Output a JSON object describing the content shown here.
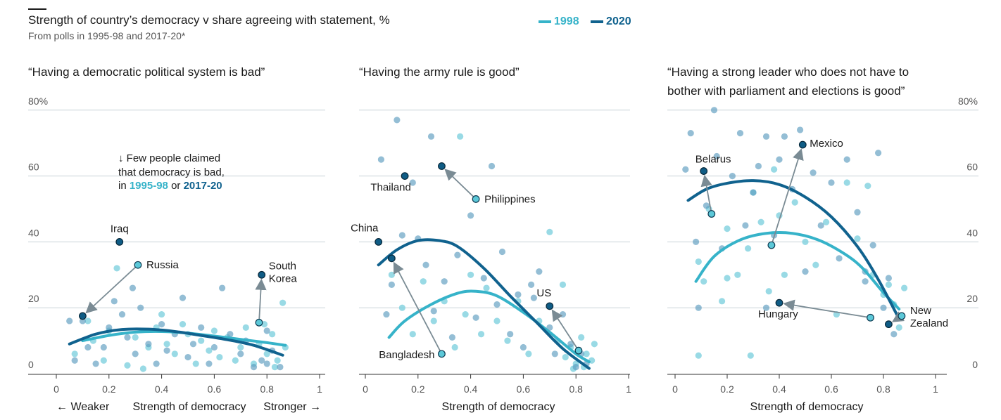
{
  "header": {
    "title": "Strength of country’s democracy v share agreeing with statement, %",
    "subtitle": "From polls in 1995-98 and 2017-20*"
  },
  "legend": {
    "items": [
      {
        "label": "1998",
        "color": "#36b3c9"
      },
      {
        "label": "2020",
        "color": "#10628e"
      }
    ]
  },
  "annotation": {
    "arrow": "↓",
    "line1": "Few people claimed",
    "line2": "that democracy is bad,",
    "prefix": "in ",
    "year1": "1995-98",
    "middle": " or ",
    "year2": "2017-20"
  },
  "axes": {
    "xlabel": "Strength of democracy",
    "weaker": "← Weaker",
    "stronger": "Stronger →",
    "xticks": [
      "0",
      "0.2",
      "0.4",
      "0.6",
      "0.8",
      "1"
    ],
    "yticks": [
      "0",
      "20",
      "40",
      "60",
      "80%"
    ],
    "ylim": [
      0,
      80
    ],
    "xlim": [
      -0.1,
      1.02
    ]
  },
  "colors": {
    "c1998": "#36b3c9",
    "c2020": "#10628e",
    "dot1998": "#7fd1de",
    "dot2020": "#5a9bbf",
    "grid": "#c9d3d8",
    "arrow": "#7a8b94"
  },
  "chart_data": [
    {
      "type": "scatter",
      "title": "“Having a democratic political system is bad”",
      "xlabel": "Strength of democracy",
      "ylim": [
        0,
        80
      ],
      "trend_1998": [
        [
          0.1,
          10
        ],
        [
          0.2,
          11.6
        ],
        [
          0.3,
          12.6
        ],
        [
          0.4,
          12.8
        ],
        [
          0.5,
          12.3
        ],
        [
          0.6,
          11.4
        ],
        [
          0.7,
          10.4
        ],
        [
          0.8,
          9.4
        ],
        [
          0.87,
          8.6
        ]
      ],
      "trend_2020": [
        [
          0.05,
          9
        ],
        [
          0.15,
          12
        ],
        [
          0.25,
          13.4
        ],
        [
          0.35,
          13.5
        ],
        [
          0.45,
          12.8
        ],
        [
          0.55,
          11.6
        ],
        [
          0.65,
          10.3
        ],
        [
          0.75,
          8.6
        ],
        [
          0.86,
          5.6
        ]
      ],
      "highlighted": [
        {
          "name": "Iraq",
          "x": 0.24,
          "y": 40,
          "series": "2020"
        },
        {
          "name": "Russia",
          "x": 0.1,
          "y": 17.5,
          "series": "2020",
          "from": [
            0.31,
            33
          ]
        },
        {
          "name": "South Korea",
          "x": 0.78,
          "y": 30,
          "series": "2020",
          "from": [
            0.77,
            15.5
          ]
        }
      ],
      "points_1998": [
        [
          0.07,
          6
        ],
        [
          0.12,
          16
        ],
        [
          0.14,
          10
        ],
        [
          0.18,
          4
        ],
        [
          0.2,
          13
        ],
        [
          0.23,
          32
        ],
        [
          0.27,
          2.5
        ],
        [
          0.3,
          11
        ],
        [
          0.33,
          1.5
        ],
        [
          0.35,
          8
        ],
        [
          0.38,
          14
        ],
        [
          0.4,
          18
        ],
        [
          0.42,
          9
        ],
        [
          0.45,
          6
        ],
        [
          0.48,
          15
        ],
        [
          0.5,
          12
        ],
        [
          0.53,
          3
        ],
        [
          0.55,
          10
        ],
        [
          0.58,
          7
        ],
        [
          0.6,
          13
        ],
        [
          0.62,
          5
        ],
        [
          0.65,
          11
        ],
        [
          0.68,
          4
        ],
        [
          0.7,
          8
        ],
        [
          0.72,
          14
        ],
        [
          0.75,
          3
        ],
        [
          0.77,
          9
        ],
        [
          0.8,
          6
        ],
        [
          0.82,
          12
        ],
        [
          0.84,
          4
        ],
        [
          0.86,
          21.5
        ],
        [
          0.87,
          8
        ],
        [
          0.83,
          2
        ],
        [
          0.79,
          15
        ]
      ],
      "points_2020": [
        [
          0.05,
          16
        ],
        [
          0.07,
          4
        ],
        [
          0.1,
          16
        ],
        [
          0.12,
          8
        ],
        [
          0.15,
          3
        ],
        [
          0.18,
          8
        ],
        [
          0.2,
          14
        ],
        [
          0.22,
          22
        ],
        [
          0.25,
          18
        ],
        [
          0.27,
          11
        ],
        [
          0.29,
          26
        ],
        [
          0.3,
          6
        ],
        [
          0.32,
          20
        ],
        [
          0.35,
          9
        ],
        [
          0.38,
          3
        ],
        [
          0.4,
          15
        ],
        [
          0.42,
          7
        ],
        [
          0.45,
          12
        ],
        [
          0.48,
          23
        ],
        [
          0.5,
          5
        ],
        [
          0.52,
          9
        ],
        [
          0.55,
          14
        ],
        [
          0.58,
          3
        ],
        [
          0.6,
          8
        ],
        [
          0.63,
          26
        ],
        [
          0.66,
          12
        ],
        [
          0.7,
          6
        ],
        [
          0.72,
          10
        ],
        [
          0.75,
          2
        ],
        [
          0.78,
          4
        ],
        [
          0.8,
          13
        ],
        [
          0.82,
          7
        ],
        [
          0.85,
          2
        ],
        [
          0.8,
          3
        ]
      ]
    },
    {
      "type": "scatter",
      "title": "“Having the army rule is good”",
      "xlabel": "Strength of democracy",
      "ylim": [
        0,
        80
      ],
      "trend_1998": [
        [
          0.09,
          11
        ],
        [
          0.15,
          16
        ],
        [
          0.25,
          21
        ],
        [
          0.35,
          24.4
        ],
        [
          0.42,
          25
        ],
        [
          0.5,
          23.6
        ],
        [
          0.6,
          18.6
        ],
        [
          0.7,
          12.6
        ],
        [
          0.8,
          6
        ],
        [
          0.85,
          3.6
        ]
      ],
      "trend_2020": [
        [
          0.05,
          33
        ],
        [
          0.12,
          37.6
        ],
        [
          0.2,
          40.4
        ],
        [
          0.28,
          40.4
        ],
        [
          0.35,
          38.6
        ],
        [
          0.45,
          32
        ],
        [
          0.55,
          23.6
        ],
        [
          0.65,
          15.6
        ],
        [
          0.75,
          7.6
        ],
        [
          0.85,
          1.6
        ]
      ],
      "highlighted": [
        {
          "name": "Thailand",
          "x": 0.15,
          "y": 60,
          "series": "2020"
        },
        {
          "name": "Philippines",
          "x": 0.29,
          "y": 63,
          "series": "2020",
          "from": [
            0.42,
            53
          ]
        },
        {
          "name": "China",
          "x": 0.05,
          "y": 40,
          "series": "2020"
        },
        {
          "name": "Bangladesh",
          "x": 0.1,
          "y": 35,
          "series": "2020",
          "from": [
            0.29,
            6
          ]
        },
        {
          "name": "US",
          "x": 0.7,
          "y": 20.5,
          "series": "2020",
          "from": [
            0.81,
            7
          ]
        }
      ],
      "points_1998": [
        [
          0.1,
          30
        ],
        [
          0.14,
          20
        ],
        [
          0.18,
          12
        ],
        [
          0.22,
          28
        ],
        [
          0.26,
          16
        ],
        [
          0.3,
          22
        ],
        [
          0.34,
          8
        ],
        [
          0.36,
          72
        ],
        [
          0.38,
          18
        ],
        [
          0.4,
          30
        ],
        [
          0.44,
          12
        ],
        [
          0.46,
          26
        ],
        [
          0.5,
          16
        ],
        [
          0.54,
          10
        ],
        [
          0.58,
          22
        ],
        [
          0.62,
          6
        ],
        [
          0.66,
          16
        ],
        [
          0.7,
          43
        ],
        [
          0.73,
          10
        ],
        [
          0.76,
          5
        ],
        [
          0.78,
          8
        ],
        [
          0.8,
          3
        ],
        [
          0.82,
          11
        ],
        [
          0.84,
          6
        ],
        [
          0.86,
          4
        ],
        [
          0.87,
          9
        ],
        [
          0.79,
          1.5
        ],
        [
          0.83,
          2
        ],
        [
          0.75,
          27
        ]
      ],
      "points_2020": [
        [
          0.06,
          65
        ],
        [
          0.08,
          18
        ],
        [
          0.12,
          77
        ],
        [
          0.14,
          42
        ],
        [
          0.18,
          58
        ],
        [
          0.25,
          72
        ],
        [
          0.23,
          33
        ],
        [
          0.26,
          19
        ],
        [
          0.3,
          28
        ],
        [
          0.33,
          11
        ],
        [
          0.35,
          36
        ],
        [
          0.4,
          48
        ],
        [
          0.42,
          17
        ],
        [
          0.45,
          29
        ],
        [
          0.48,
          63
        ],
        [
          0.5,
          21
        ],
        [
          0.52,
          37
        ],
        [
          0.55,
          12
        ],
        [
          0.58,
          24
        ],
        [
          0.6,
          8
        ],
        [
          0.63,
          27
        ],
        [
          0.66,
          31
        ],
        [
          0.7,
          14
        ],
        [
          0.72,
          6
        ],
        [
          0.75,
          18
        ],
        [
          0.78,
          9
        ],
        [
          0.8,
          2
        ],
        [
          0.82,
          6
        ],
        [
          0.84,
          3
        ],
        [
          0.64,
          23
        ],
        [
          0.1,
          27
        ],
        [
          0.2,
          41
        ]
      ]
    },
    {
      "type": "scatter",
      "title": "“Having a strong leader who does not have to bother with parliament and elections is good”",
      "xlabel": "Strength of democracy",
      "ylim": [
        0,
        80
      ],
      "trend_1998": [
        [
          0.08,
          28
        ],
        [
          0.15,
          35.6
        ],
        [
          0.25,
          40.6
        ],
        [
          0.35,
          42.6
        ],
        [
          0.45,
          42.6
        ],
        [
          0.55,
          40.6
        ],
        [
          0.65,
          36.4
        ],
        [
          0.72,
          32
        ],
        [
          0.8,
          24.6
        ],
        [
          0.86,
          19.6
        ]
      ],
      "trend_2020": [
        [
          0.05,
          52.6
        ],
        [
          0.12,
          56
        ],
        [
          0.2,
          57.8
        ],
        [
          0.3,
          58.6
        ],
        [
          0.4,
          57.4
        ],
        [
          0.5,
          53.6
        ],
        [
          0.6,
          47.6
        ],
        [
          0.7,
          38.6
        ],
        [
          0.78,
          28.6
        ],
        [
          0.86,
          16.6
        ]
      ],
      "highlighted": [
        {
          "name": "Belarus",
          "x": 0.11,
          "y": 61.5,
          "series": "2020",
          "from": [
            0.14,
            48.5
          ]
        },
        {
          "name": "Mexico",
          "x": 0.49,
          "y": 69.5,
          "series": "2020",
          "from": [
            0.37,
            39
          ]
        },
        {
          "name": "Hungary",
          "x": 0.4,
          "y": 21.5,
          "series": "2020",
          "from": [
            0.75,
            17
          ]
        },
        {
          "name": "New Zealand",
          "x": 0.82,
          "y": 15,
          "series": "2020",
          "from": [
            0.87,
            17.5
          ]
        }
      ],
      "points_1998": [
        [
          0.09,
          34
        ],
        [
          0.11,
          28
        ],
        [
          0.13,
          50
        ],
        [
          0.18,
          22
        ],
        [
          0.2,
          44
        ],
        [
          0.24,
          30
        ],
        [
          0.28,
          38
        ],
        [
          0.3,
          55
        ],
        [
          0.33,
          46
        ],
        [
          0.36,
          25
        ],
        [
          0.38,
          62
        ],
        [
          0.4,
          48
        ],
        [
          0.42,
          30
        ],
        [
          0.46,
          52
        ],
        [
          0.5,
          40
        ],
        [
          0.54,
          33
        ],
        [
          0.58,
          46
        ],
        [
          0.62,
          18
        ],
        [
          0.66,
          58
        ],
        [
          0.7,
          41
        ],
        [
          0.74,
          57
        ],
        [
          0.76,
          30
        ],
        [
          0.8,
          24
        ],
        [
          0.82,
          27
        ],
        [
          0.84,
          21
        ],
        [
          0.86,
          14
        ],
        [
          0.88,
          26
        ],
        [
          0.09,
          5.5
        ],
        [
          0.29,
          5.5
        ],
        [
          0.2,
          29
        ]
      ],
      "points_2020": [
        [
          0.04,
          62
        ],
        [
          0.06,
          73
        ],
        [
          0.08,
          40
        ],
        [
          0.09,
          20
        ],
        [
          0.12,
          51
        ],
        [
          0.15,
          80
        ],
        [
          0.16,
          66
        ],
        [
          0.18,
          38
        ],
        [
          0.22,
          60
        ],
        [
          0.25,
          73
        ],
        [
          0.27,
          45
        ],
        [
          0.3,
          55
        ],
        [
          0.32,
          63
        ],
        [
          0.35,
          72
        ],
        [
          0.38,
          42
        ],
        [
          0.4,
          65
        ],
        [
          0.42,
          72
        ],
        [
          0.45,
          56
        ],
        [
          0.48,
          74
        ],
        [
          0.5,
          31
        ],
        [
          0.53,
          61
        ],
        [
          0.56,
          45
        ],
        [
          0.6,
          58
        ],
        [
          0.63,
          35
        ],
        [
          0.66,
          65
        ],
        [
          0.7,
          49
        ],
        [
          0.73,
          31
        ],
        [
          0.76,
          39
        ],
        [
          0.78,
          67
        ],
        [
          0.8,
          20
        ],
        [
          0.82,
          29
        ],
        [
          0.84,
          12
        ],
        [
          0.73,
          28
        ],
        [
          0.35,
          20
        ]
      ]
    }
  ]
}
